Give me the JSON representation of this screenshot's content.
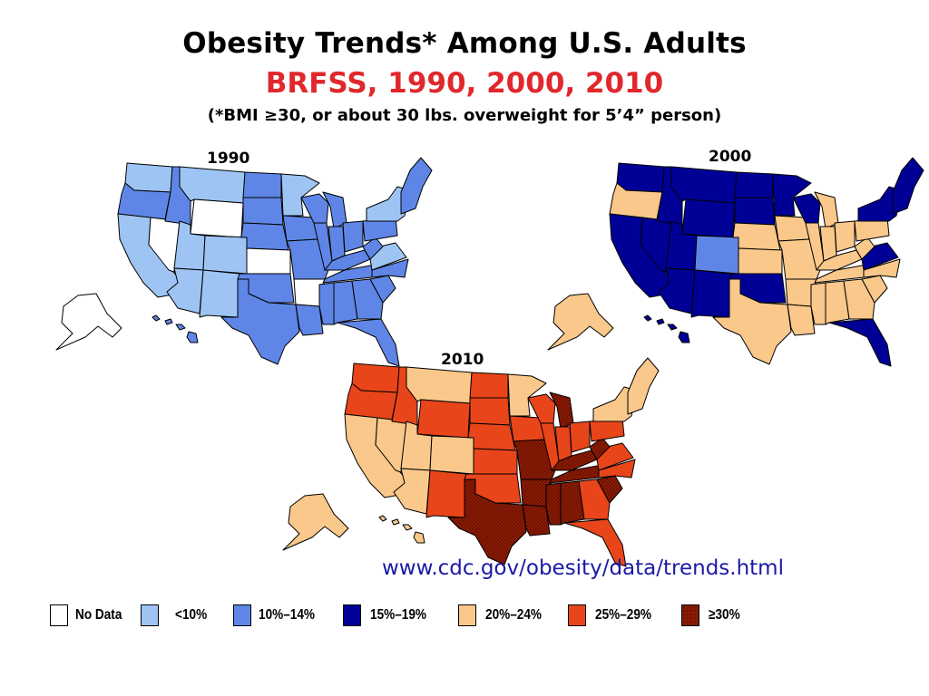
{
  "header": {
    "title": "Obesity Trends* Among U.S. Adults",
    "subtitle": "BRFSS, 1990, 2000, 2010",
    "note": "(*BMI ≥30, or about 30 lbs. overweight for 5’4” person)"
  },
  "colors": {
    "subtitle": "#e0282c",
    "url": "#1a1aa6",
    "no_data": "#ffffff",
    "lt10": "#9ec4f3",
    "c10_14": "#5f86e6",
    "c15_19": "#000096",
    "c20_24": "#f9c88a",
    "c25_29": "#e8451a",
    "ge30": "#8b1a04",
    "border": "#000000"
  },
  "maps": [
    {
      "year": "1990",
      "base_class": "c10_14",
      "states": {
        "WA": "lt10",
        "OR": "c10_14",
        "CA": "lt10",
        "NV": "no_data",
        "ID": "c10_14",
        "MT": "lt10",
        "WY": "no_data",
        "UT": "lt10",
        "AZ": "lt10",
        "CO": "lt10",
        "NM": "lt10",
        "ND": "c10_14",
        "SD": "c10_14",
        "NE": "c10_14",
        "KS": "no_data",
        "OK": "c10_14",
        "TX": "c10_14",
        "MN": "lt10",
        "IA": "c10_14",
        "MO": "c10_14",
        "AR": "no_data",
        "LA": "c10_14",
        "WI": "c10_14",
        "IL": "c10_14",
        "MI": "c10_14",
        "IN": "c10_14",
        "OH": "c10_14",
        "KY": "c10_14",
        "TN": "c10_14",
        "MS": "c10_14",
        "AL": "c10_14",
        "GA": "c10_14",
        "FL": "c10_14",
        "SC": "c10_14",
        "NC": "c10_14",
        "VA": "lt10",
        "WV": "c10_14",
        "PA": "c10_14",
        "NY": "lt10",
        "NE_states": "c10_14",
        "AK": "no_data",
        "HI": "c10_14"
      }
    },
    {
      "year": "2000",
      "base_class": "c20_24",
      "states": {
        "WA": "c15_19",
        "OR": "c20_24",
        "CA": "c15_19",
        "NV": "c15_19",
        "ID": "c15_19",
        "MT": "c15_19",
        "WY": "c15_19",
        "UT": "c15_19",
        "AZ": "c15_19",
        "CO": "c10_14",
        "NM": "c15_19",
        "ND": "c15_19",
        "SD": "c15_19",
        "NE": "c20_24",
        "KS": "c20_24",
        "OK": "c15_19",
        "TX": "c20_24",
        "MN": "c15_19",
        "IA": "c20_24",
        "MO": "c20_24",
        "AR": "c20_24",
        "LA": "c20_24",
        "WI": "c15_19",
        "IL": "c20_24",
        "MI": "c20_24",
        "IN": "c20_24",
        "OH": "c20_24",
        "KY": "c20_24",
        "TN": "c20_24",
        "MS": "c20_24",
        "AL": "c20_24",
        "GA": "c20_24",
        "FL": "c15_19",
        "SC": "c20_24",
        "NC": "c20_24",
        "VA": "c15_19",
        "WV": "c20_24",
        "PA": "c20_24",
        "NY": "c15_19",
        "NE_states": "c15_19",
        "AK": "c20_24",
        "HI": "c15_19"
      }
    },
    {
      "year": "2010",
      "base_class": "c25_29",
      "states": {
        "WA": "c25_29",
        "OR": "c25_29",
        "CA": "c20_24",
        "NV": "c20_24",
        "ID": "c25_29",
        "MT": "c20_24",
        "WY": "c25_29",
        "UT": "c20_24",
        "AZ": "c20_24",
        "CO": "c20_24",
        "NM": "c25_29",
        "ND": "c25_29",
        "SD": "c25_29",
        "NE": "c25_29",
        "KS": "c25_29",
        "OK": "c25_29",
        "TX": "ge30",
        "MN": "c20_24",
        "IA": "c25_29",
        "MO": "ge30",
        "AR": "ge30",
        "LA": "ge30",
        "WI": "c25_29",
        "IL": "c25_29",
        "MI": "ge30",
        "IN": "c25_29",
        "OH": "c25_29",
        "KY": "ge30",
        "TN": "ge30",
        "MS": "ge30",
        "AL": "ge30",
        "GA": "c25_29",
        "FL": "c25_29",
        "SC": "ge30",
        "NC": "c25_29",
        "VA": "c25_29",
        "WV": "ge30",
        "PA": "c25_29",
        "NY": "c20_24",
        "NE_states": "c20_24",
        "AK": "c20_24",
        "HI": "c20_24"
      }
    }
  ],
  "url": "www.cdc.gov/obesity/data/trends.html",
  "legend": [
    {
      "label": "No Data",
      "class": "no_data"
    },
    {
      "label": "<10%",
      "class": "lt10"
    },
    {
      "label": "10%–14%",
      "class": "c10_14"
    },
    {
      "label": "15%–19%",
      "class": "c15_19"
    },
    {
      "label": "20%–24%",
      "class": "c20_24"
    },
    {
      "label": "25%–29%",
      "class": "c25_29"
    },
    {
      "label": "≥30%",
      "class": "ge30"
    }
  ]
}
